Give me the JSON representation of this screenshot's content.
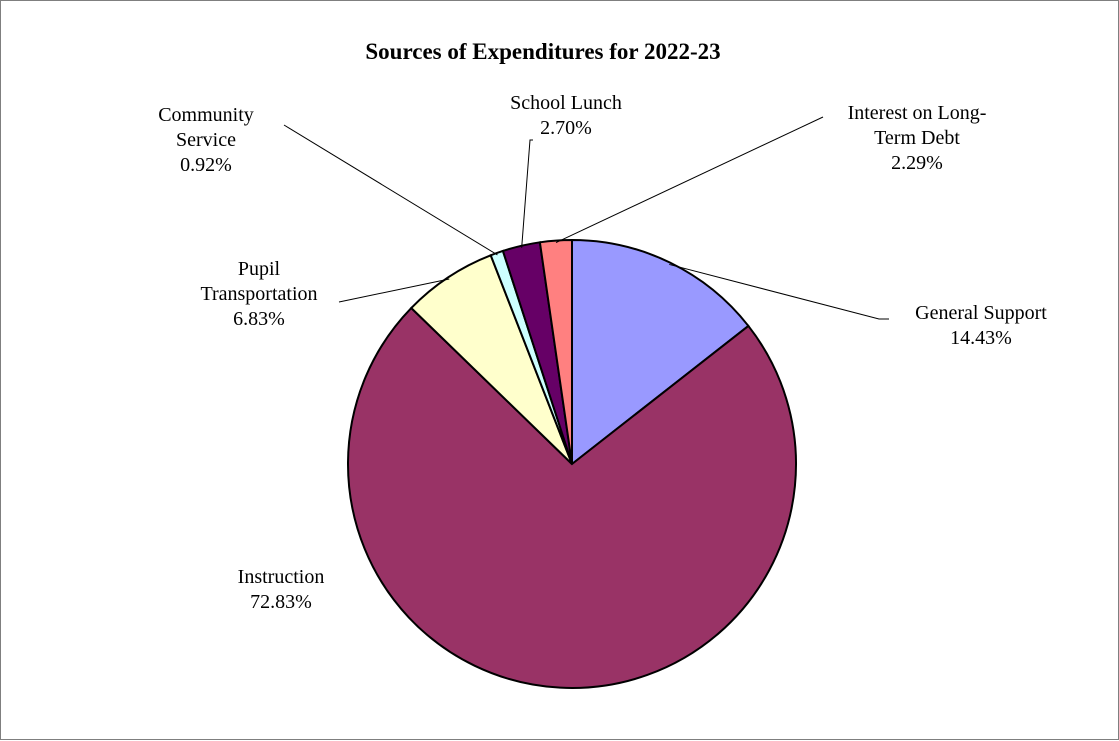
{
  "chart_data": {
    "type": "pie",
    "title": "Sources of Expenditures for 2022-23",
    "slices": [
      {
        "label": "General Support",
        "lines": [
          "General Support"
        ],
        "value": 14.43,
        "pct_label": "14.43%",
        "color": "#9999FF"
      },
      {
        "label": "Instruction",
        "lines": [
          "Instruction"
        ],
        "value": 72.83,
        "pct_label": "72.83%",
        "color": "#993366"
      },
      {
        "label": "Pupil Transportation",
        "lines": [
          "Pupil",
          "Transportation"
        ],
        "value": 6.83,
        "pct_label": "6.83%",
        "color": "#FFFFCC"
      },
      {
        "label": "Community Service",
        "lines": [
          "Community",
          "Service"
        ],
        "value": 0.92,
        "pct_label": "0.92%",
        "color": "#CCFFFF"
      },
      {
        "label": "School Lunch",
        "lines": [
          "School Lunch"
        ],
        "value": 2.7,
        "pct_label": "2.70%",
        "color": "#660066"
      },
      {
        "label": "Interest on Long-Term Debt",
        "lines": [
          "Interest on Long-",
          "Term Debt"
        ],
        "value": 2.29,
        "pct_label": "2.29%",
        "color": "#FF8080"
      }
    ],
    "legend": "none"
  }
}
